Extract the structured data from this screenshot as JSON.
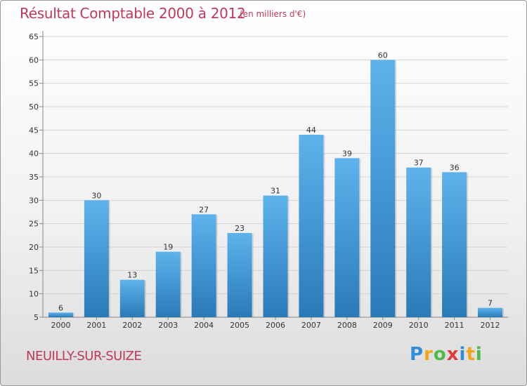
{
  "title": "Résultat Comptable 2000 à 2012",
  "subtitle": "(en milliers d'€)",
  "commune": "NEUILLY-SUR-SUIZE",
  "logo": {
    "letters": [
      "P",
      "r",
      "o",
      "x",
      "i",
      "t",
      "i"
    ],
    "colors": [
      "#2e8fd6",
      "#f2a51a",
      "#4fb848",
      "#e23a3a",
      "#2e8fd6",
      "#f2a51a",
      "#4fb848"
    ]
  },
  "colors": {
    "bar_top": "#5eb3ec",
    "bar_bottom": "#2a7ab8",
    "title": "#c0395c"
  },
  "chart_data": {
    "type": "bar",
    "categories": [
      "2000",
      "2001",
      "2002",
      "2003",
      "2004",
      "2005",
      "2006",
      "2007",
      "2008",
      "2009",
      "2010",
      "2011",
      "2012"
    ],
    "values": [
      6,
      30,
      13,
      19,
      27,
      23,
      31,
      44,
      39,
      60,
      37,
      36,
      7
    ],
    "yticks": [
      5,
      10,
      15,
      20,
      25,
      30,
      35,
      40,
      45,
      50,
      55,
      60,
      65
    ],
    "ylim": [
      5,
      65
    ],
    "grid": true,
    "xlabel": "",
    "ylabel": ""
  }
}
